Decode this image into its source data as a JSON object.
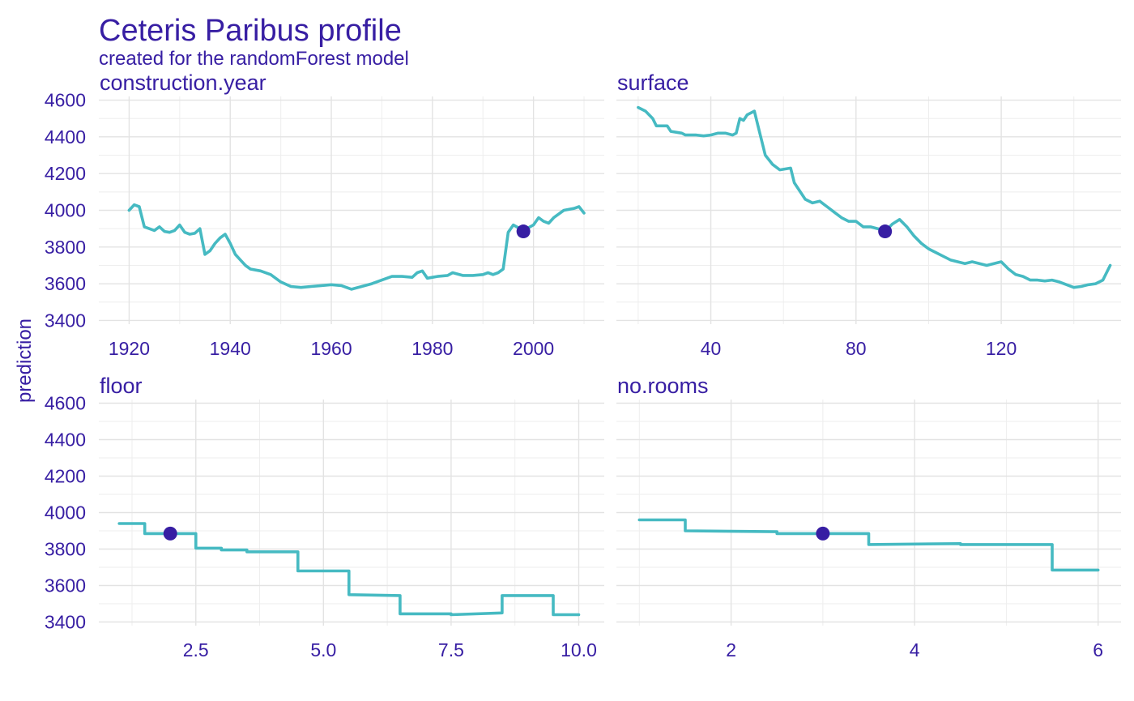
{
  "chart_data": {
    "type": "line",
    "title": "Ceteris Paribus profile",
    "subtitle": "created for the randomForest model",
    "ylabel": "prediction",
    "ylim": [
      3380,
      4620
    ],
    "yticks": [
      3400,
      3600,
      3800,
      4000,
      4200,
      4400,
      4600
    ],
    "colors": {
      "text": "#371ea3",
      "line": "#46bac2",
      "point": "#371ea3"
    },
    "grid": true,
    "legend": "none",
    "panels": [
      {
        "variable": "construction.year",
        "xlim": [
          1914,
          2014
        ],
        "xticks": [
          1920,
          1940,
          1960,
          1980,
          2000
        ],
        "xtick_labels": [
          "1920",
          "1940",
          "1960",
          "1980",
          "2000"
        ],
        "observation": {
          "x": 1998,
          "y": 3885
        },
        "x": [
          1920,
          1921,
          1922,
          1923,
          1924,
          1925,
          1926,
          1927,
          1928,
          1929,
          1930,
          1931,
          1932,
          1933,
          1934,
          1935,
          1936,
          1937,
          1938,
          1939,
          1940,
          1941,
          1942,
          1943,
          1944,
          1946,
          1948,
          1950,
          1952,
          1954,
          1956,
          1958,
          1960,
          1962,
          1964,
          1966,
          1968,
          1970,
          1972,
          1974,
          1976,
          1977,
          1978,
          1979,
          1980,
          1981,
          1983,
          1984,
          1986,
          1988,
          1990,
          1991,
          1992,
          1993,
          1994,
          1995,
          1996,
          1998,
          2000,
          2001,
          2002,
          2003,
          2004,
          2006,
          2008,
          2009,
          2010
        ],
        "y": [
          4000,
          4030,
          4020,
          3910,
          3900,
          3890,
          3910,
          3885,
          3880,
          3890,
          3920,
          3880,
          3870,
          3875,
          3900,
          3760,
          3780,
          3820,
          3850,
          3870,
          3820,
          3760,
          3730,
          3700,
          3680,
          3670,
          3650,
          3610,
          3585,
          3580,
          3585,
          3590,
          3595,
          3590,
          3570,
          3585,
          3600,
          3620,
          3640,
          3640,
          3635,
          3660,
          3670,
          3630,
          3635,
          3640,
          3645,
          3660,
          3645,
          3645,
          3650,
          3660,
          3650,
          3660,
          3680,
          3880,
          3920,
          3890,
          3920,
          3960,
          3940,
          3930,
          3960,
          4000,
          4010,
          4020,
          3985
        ]
      },
      {
        "variable": "surface",
        "xlim": [
          14,
          153
        ],
        "xticks": [
          40,
          80,
          120
        ],
        "xtick_labels": [
          "40",
          "80",
          "120"
        ],
        "observation": {
          "x": 88,
          "y": 3885
        },
        "x": [
          20,
          22,
          24,
          25,
          28,
          29,
          32,
          33,
          36,
          38,
          40,
          42,
          44,
          46,
          47,
          48,
          49,
          50,
          52,
          53,
          55,
          57,
          59,
          62,
          63,
          66,
          68,
          70,
          72,
          74,
          76,
          78,
          80,
          82,
          84,
          86,
          88,
          90,
          92,
          94,
          96,
          98,
          100,
          102,
          104,
          106,
          108,
          110,
          112,
          114,
          116,
          118,
          120,
          122,
          124,
          126,
          128,
          130,
          132,
          134,
          136,
          138,
          140,
          142,
          144,
          146,
          148,
          150
        ],
        "y": [
          4560,
          4540,
          4500,
          4460,
          4460,
          4430,
          4420,
          4410,
          4410,
          4405,
          4410,
          4420,
          4420,
          4410,
          4420,
          4500,
          4490,
          4520,
          4540,
          4460,
          4300,
          4250,
          4220,
          4230,
          4150,
          4060,
          4040,
          4050,
          4020,
          3990,
          3960,
          3940,
          3940,
          3910,
          3910,
          3900,
          3885,
          3925,
          3950,
          3910,
          3860,
          3820,
          3790,
          3770,
          3750,
          3730,
          3720,
          3710,
          3720,
          3710,
          3700,
          3710,
          3720,
          3680,
          3650,
          3640,
          3620,
          3620,
          3615,
          3620,
          3610,
          3595,
          3580,
          3585,
          3595,
          3600,
          3620,
          3700
        ]
      },
      {
        "variable": "floor",
        "xlim": [
          0.6,
          10.5
        ],
        "xticks": [
          2.5,
          5.0,
          7.5,
          10.0
        ],
        "xtick_labels": [
          "2.5",
          "5.0",
          "7.5",
          "10.0"
        ],
        "observation": {
          "x": 2,
          "y": 3885
        },
        "x": [
          1,
          1.5,
          1.5,
          2.5,
          2.5,
          3.0,
          3.0,
          3.5,
          3.5,
          4.5,
          4.5,
          5.5,
          5.5,
          6.5,
          6.5,
          7.5,
          7.5,
          8.5,
          8.5,
          9.5,
          9.5,
          10
        ],
        "y": [
          3940,
          3940,
          3885,
          3885,
          3805,
          3805,
          3795,
          3795,
          3785,
          3785,
          3680,
          3680,
          3550,
          3545,
          3445,
          3445,
          3440,
          3450,
          3545,
          3545,
          3440,
          3440
        ]
      },
      {
        "variable": "no.rooms",
        "xlim": [
          0.75,
          6.25
        ],
        "xticks": [
          2,
          4,
          6
        ],
        "xtick_labels": [
          "2",
          "4",
          "6"
        ],
        "observation": {
          "x": 3,
          "y": 3885
        },
        "x": [
          1,
          1.5,
          1.5,
          2.5,
          2.5,
          3.5,
          3.5,
          4.5,
          4.5,
          5.5,
          5.5,
          6
        ],
        "y": [
          3960,
          3960,
          3900,
          3895,
          3885,
          3885,
          3825,
          3830,
          3825,
          3825,
          3685,
          3685
        ]
      }
    ]
  }
}
